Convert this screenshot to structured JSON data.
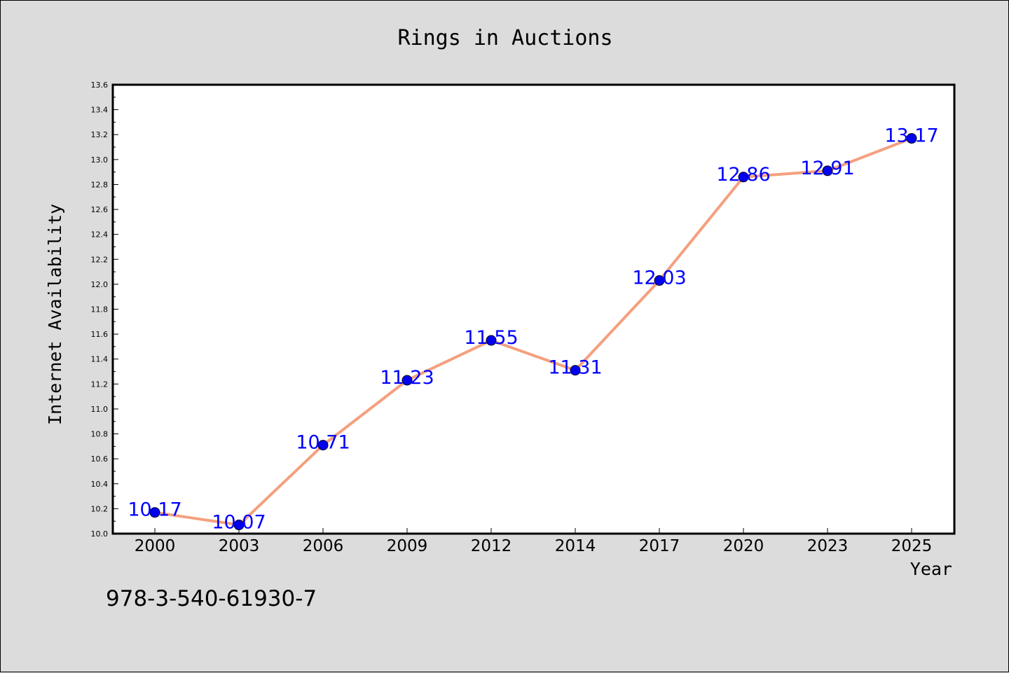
{
  "chart_data": {
    "type": "line",
    "title": "Rings in Auctions",
    "xlabel": "Year",
    "ylabel": "Internet Availability",
    "categories": [
      "2000",
      "2003",
      "2006",
      "2009",
      "2012",
      "2014",
      "2017",
      "2020",
      "2023",
      "2025"
    ],
    "series": [
      {
        "values": [
          10.17,
          10.07,
          10.71,
          11.23,
          11.55,
          11.31,
          12.03,
          12.86,
          12.91,
          13.17
        ],
        "data_labels": [
          "10.17",
          "10.07",
          "10.71",
          "11.23",
          "11.55",
          "11.31",
          "12.03",
          "12.86",
          "12.91",
          "13.17"
        ],
        "line_color": "#f4a07e",
        "marker_color": "#0000ee"
      }
    ],
    "ylim": [
      10.0,
      13.6
    ],
    "yticks": [
      "10.0",
      "10.2",
      "10.4",
      "10.6",
      "10.8",
      "11.0",
      "11.2",
      "11.4",
      "11.6",
      "11.8",
      "12.0",
      "12.2",
      "12.4",
      "12.6",
      "12.8",
      "13.0",
      "13.2",
      "13.4",
      "13.6"
    ],
    "grid": false,
    "label_color": "#0000ff",
    "background_color": "#dcdcdc",
    "plot_background_color": "#ffffff"
  },
  "annotation": "978-3-540-61930-7"
}
